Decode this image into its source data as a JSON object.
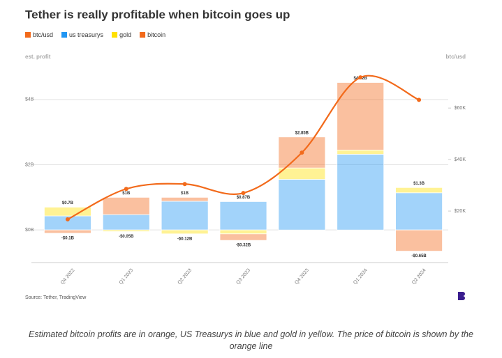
{
  "chart_data": {
    "type": "bar",
    "title": "Tether is really profitable when bitcoin goes up",
    "ylabel": "est. profit",
    "y2label": "btc/usd",
    "source": "Source: Tether, TradingView",
    "caption": "Estimated bitcoin profits are in orange, US Treasurys in blue and gold in yellow. The price of bitcoin is shown by the orange line",
    "categories": [
      "Q4 2022",
      "Q1 2023",
      "Q2 2023",
      "Q3 2023",
      "Q4 2023",
      "Q1 2024",
      "Q2 2024"
    ],
    "series": [
      {
        "name": "btc/usd",
        "type": "line",
        "axis": "y2",
        "color": "#f26a1b",
        "values": [
          16800,
          28600,
          30500,
          27000,
          42700,
          71900,
          63200
        ]
      },
      {
        "name": "us treasurys",
        "color": "#2196f3",
        "values": [
          0.43,
          0.47,
          0.88,
          0.87,
          1.55,
          2.32,
          1.14
        ]
      },
      {
        "name": "gold",
        "color": "#ffe000",
        "values": [
          0.27,
          -0.05,
          -0.12,
          -0.12,
          0.35,
          0.13,
          0.16
        ]
      },
      {
        "name": "bitcoin",
        "color": "#f26a1b",
        "values": [
          -0.1,
          0.53,
          0.12,
          -0.2,
          0.95,
          2.07,
          -0.65
        ]
      }
    ],
    "positive_labels": [
      "$0.7B",
      "$1B",
      "$1B",
      "$0.87B",
      "$2.85B",
      "$4.52B",
      "$1.3B"
    ],
    "negative_labels": [
      "-$0.1B",
      "-$0.05B",
      "-$0.12B",
      "-$0.32B",
      null,
      null,
      "-$0.65B"
    ],
    "ylim": [
      -1,
      5
    ],
    "yticks": [
      {
        "value": 0,
        "label": "$0B"
      },
      {
        "value": 2,
        "label": "$2B"
      },
      {
        "value": 4,
        "label": "$4B"
      }
    ],
    "y2lim": [
      0,
      76000
    ],
    "y2ticks": [
      {
        "value": 20000,
        "label": "$20K"
      },
      {
        "value": 40000,
        "label": "$40K"
      },
      {
        "value": 60000,
        "label": "$60K"
      }
    ],
    "grid": true
  }
}
